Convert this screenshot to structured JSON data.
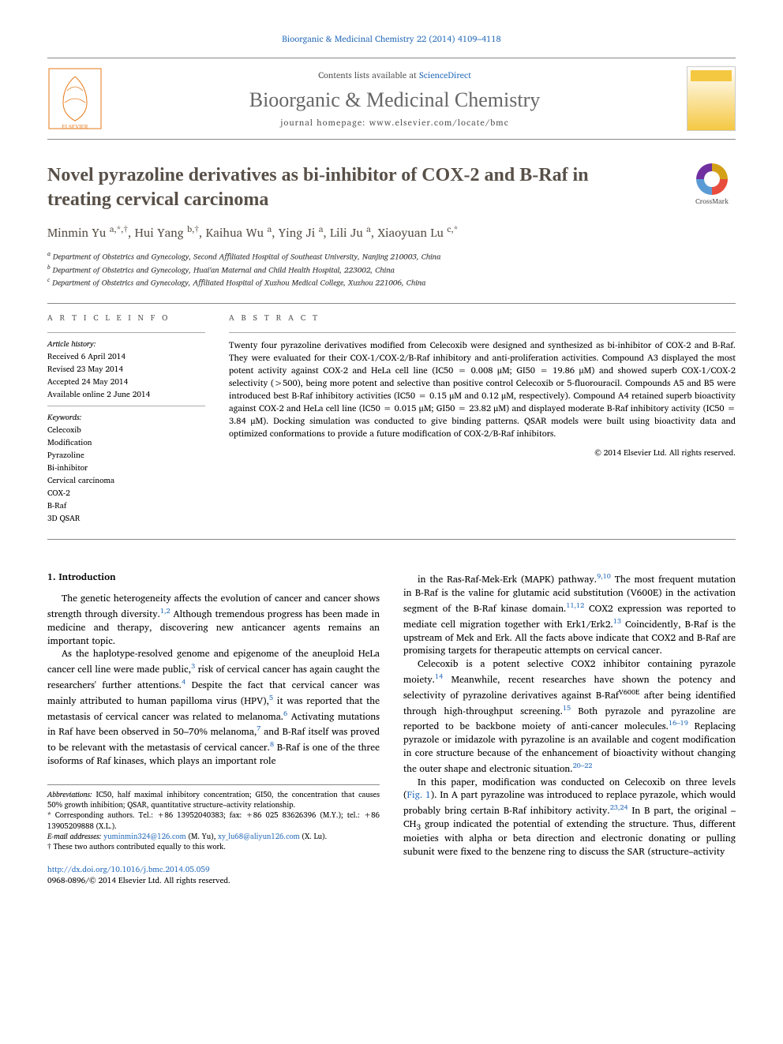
{
  "header": {
    "citation": "Bioorganic & Medicinal Chemistry 22 (2014) 4109–4118",
    "contents_prefix": "Contents lists available at ",
    "contents_link": "ScienceDirect",
    "journal_name": "Bioorganic & Medicinal Chemistry",
    "homepage_prefix": "journal homepage: ",
    "homepage_url": "www.elsevier.com/locate/bmc"
  },
  "crossmark_label": "CrossMark",
  "title": "Novel pyrazoline derivatives as bi-inhibitor of COX-2 and B-Raf in treating cervical carcinoma",
  "authors_html": "Minmin Yu <sup>a,*,†</sup>, Hui Yang <sup>b,†</sup>, Kaihua Wu <sup>a</sup>, Ying Ji <sup>a</sup>, Lili Ju <sup>a</sup>, Xiaoyuan Lu <sup>c,*</sup>",
  "affiliations": [
    "a Department of Obstetrics and Gynecology, Second Affiliated Hospital of Southeast University, Nanjing 210003, China",
    "b Department of Obstetrics and Gynecology, Huai'an Maternal and Child Health Hospital, 223002, China",
    "c Department of Obstetrics and Gynecology, Affiliated Hospital of Xuzhou Medical College, Xuzhou 221006, China"
  ],
  "info": {
    "heading": "A R T I C L E   I N F O",
    "history_label": "Article history:",
    "history": [
      "Received 6 April 2014",
      "Revised 23 May 2014",
      "Accepted 24 May 2014",
      "Available online 2 June 2014"
    ],
    "keywords_label": "Keywords:",
    "keywords": [
      "Celecoxib",
      "Modification",
      "Pyrazoline",
      "Bi-inhibitor",
      "Cervical carcinoma",
      "COX-2",
      "B-Raf",
      "3D QSAR"
    ]
  },
  "abstract": {
    "heading": "A B S T R A C T",
    "text": "Twenty four pyrazoline derivatives modified from Celecoxib were designed and synthesized as bi-inhibitor of COX-2 and B-Raf. They were evaluated for their COX-1/COX-2/B-Raf inhibitory and anti-proliferation activities. Compound A3 displayed the most potent activity against COX-2 and HeLa cell line (IC50 = 0.008 μM; GI50 = 19.86 μM) and showed superb COX-1/COX-2 selectivity (>500), being more potent and selective than positive control Celecoxib or 5-fluorouracil. Compounds A5 and B5 were introduced best B-Raf inhibitory activities (IC50 = 0.15 μM and 0.12 μM, respectively). Compound A4 retained superb bioactivity against COX-2 and HeLa cell line (IC50 = 0.015 μM; GI50 = 23.82 μM) and displayed moderate B-Raf inhibitory activity (IC50 = 3.84 μM). Docking simulation was conducted to give binding patterns. QSAR models were built using bioactivity data and optimized conformations to provide a future modification of COX-2/B-Raf inhibitors.",
    "copyright": "© 2014 Elsevier Ltd. All rights reserved."
  },
  "body": {
    "section_heading": "1. Introduction",
    "left_col": [
      {
        "text": "The genetic heterogeneity affects the evolution of cancer and cancer shows strength through diversity.",
        "ref": "1,2",
        "cont": " Although tremendous progress has been made in medicine and therapy, discovering new anticancer agents remains an important topic."
      },
      {
        "text": "As the haplotype-resolved genome and epigenome of the aneuploid HeLa cancer cell line were made public,",
        "ref": "3",
        "cont": " risk of cervical cancer has again caught the researchers' further attentions.",
        "ref2": "4",
        "cont2": " Despite the fact that cervical cancer was mainly attributed to human papilloma virus (HPV),",
        "ref3": "5",
        "cont3": " it was reported that the metastasis of cervical cancer was related to melanoma.",
        "ref4": "6",
        "cont4": " Activating mutations in Raf have been observed in 50–70% melanoma,",
        "ref5": "7",
        "cont5": " and B-Raf itself was proved to be relevant with the metastasis of cervical cancer.",
        "ref6": "8",
        "cont6": " B-Raf is one of the three isoforms of Raf kinases, which plays an important role"
      }
    ],
    "right_col": [
      {
        "text": "in the Ras-Raf-Mek-Erk (MAPK) pathway.",
        "ref": "9,10",
        "cont": " The most frequent mutation in B-Raf is the valine for glutamic acid substitution (V600E) in the activation segment of the B-Raf kinase domain.",
        "ref2": "11,12",
        "cont2": " COX2 expression was reported to mediate cell migration together with Erk1/Erk2.",
        "ref3": "13",
        "cont3": " Coincidently, B-Raf is the upstream of Mek and Erk. All the facts above indicate that COX2 and B-Raf are promising targets for therapeutic attempts on cervical cancer."
      },
      {
        "text": "Celecoxib is a potent selective COX2 inhibitor containing pyrazole moiety.",
        "ref": "14",
        "cont": " Meanwhile, recent researches have shown the potency and selectivity of pyrazoline derivatives against B-Raf",
        "sup_cont": "V600E",
        "cont_after_sup": " after being identified through high-throughput screening.",
        "ref2": "15",
        "cont2": " Both pyrazole and pyrazoline are reported to be backbone moiety of anti-cancer molecules.",
        "ref3": "16–19",
        "cont3": " Replacing pyrazole or imidazole with pyrazoline is an available and cogent modification in core structure because of the enhancement of bioactivity without changing the outer shape and electronic situation.",
        "ref4": "20–22"
      },
      {
        "text": "In this paper, modification was conducted on Celecoxib on three levels (",
        "fig": "Fig. 1",
        "cont_a": "). In A part pyrazoline was introduced to replace pyrazole, which would probably bring certain B-Raf inhibitory activity.",
        "ref": "23,24",
        "cont": " In B part, the original –CH",
        "sub": "3",
        "cont_b": " group indicated the potential of extending the structure. Thus, different moieties with alpha or beta direction and electronic donating or pulling subunit were fixed to the benzene ring to discuss the SAR (structure–activity"
      }
    ]
  },
  "footnotes": {
    "abbrev_label": "Abbreviations:",
    "abbrev_text": " IC50, half maximal inhibitory concentration; GI50, the concentration that causes 50% growth inhibition; QSAR, quantitative structure–activity relationship.",
    "corr_label": "* Corresponding authors. ",
    "corr_text": "Tel.: +86 13952040383; fax: +86 025 83626396 (M.Y.); tel.: +86 13905209888 (X.L.).",
    "email_label": "E-mail addresses: ",
    "email1": "yuminmin324@126.com",
    "email1_suffix": " (M. Yu), ",
    "email2": "xy_lu68@aliyun126.com",
    "email2_suffix": " (X. Lu).",
    "dagger": "† These two authors contributed equally to this work."
  },
  "doi": {
    "url": "http://dx.doi.org/10.1016/j.bmc.2014.05.059",
    "issn_line": "0968-0896/© 2014 Elsevier Ltd. All rights reserved."
  },
  "colors": {
    "link": "#2a6ebb",
    "heading": "#585048",
    "rule": "#888888"
  }
}
